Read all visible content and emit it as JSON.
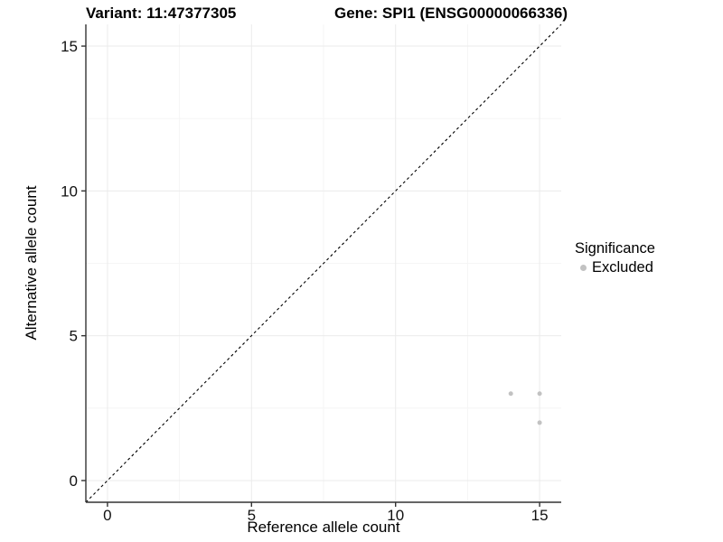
{
  "chart_data": {
    "type": "scatter",
    "title_left": "Variant: 11:47377305",
    "title_right": "Gene: SPI1 (ENSG00000066336)",
    "xlabel": "Reference allele count",
    "ylabel": "Alternative allele count",
    "xlim": [
      -0.75,
      15.75
    ],
    "ylim": [
      -0.75,
      15.75
    ],
    "x_major_ticks": [
      0,
      5,
      10,
      15
    ],
    "y_major_ticks": [
      0,
      5,
      10,
      15
    ],
    "x_minor_ticks": [
      2.5,
      7.5,
      12.5
    ],
    "y_minor_ticks": [
      2.5,
      7.5,
      12.5
    ],
    "grid": true,
    "reference_line": {
      "type": "identity y=x",
      "from": -0.75,
      "to": 15.75,
      "style": "dashed"
    },
    "series": [
      {
        "name": "Excluded",
        "color": "#c2c2c2",
        "points": [
          [
            14,
            3
          ],
          [
            15,
            3
          ],
          [
            15,
            2
          ]
        ]
      }
    ],
    "legend": {
      "title": "Significance",
      "position": "right",
      "items": [
        {
          "label": "Excluded",
          "color": "#c2c2c2"
        }
      ]
    }
  },
  "colors": {
    "background": "#ffffff",
    "grid_major": "#ebebeb",
    "grid_minor": "#f5f5f5",
    "axis": "#333333",
    "tick_text": "#111111",
    "ref_line": "#000000",
    "point": "#c2c2c2"
  }
}
